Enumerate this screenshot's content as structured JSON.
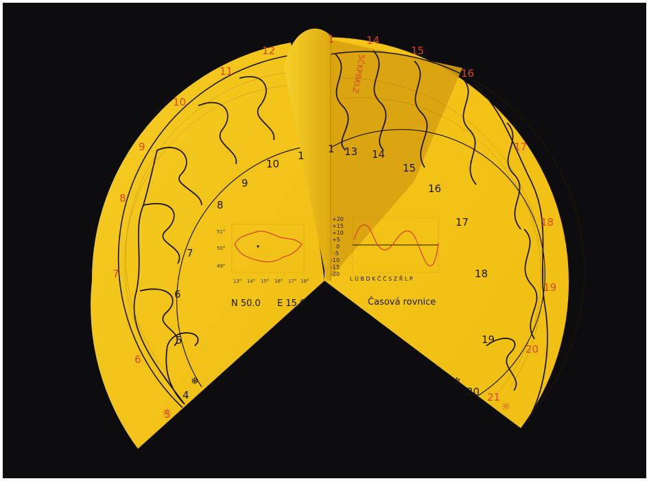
{
  "photo": {
    "background_color": "#0d0d10",
    "paper_color": "#f2c318",
    "paper_shadow_color": "#d9a50d",
    "ink_color": "#1b1407",
    "accent_red": "#d8471f"
  },
  "left_panel": {
    "outer_hours_red": [
      "5",
      "6",
      "7",
      "8",
      "9",
      "10",
      "11",
      "12"
    ],
    "inner_hours_black": [
      "4",
      "5",
      "6",
      "7",
      "8",
      "9",
      "10",
      "1"
    ],
    "map": {
      "lat_labels": [
        "51°",
        "50°",
        "49°"
      ],
      "lon_labels": [
        "13°",
        "14°",
        "15°",
        "16°",
        "17°",
        "18°"
      ]
    },
    "coordinates": {
      "lat": "N 50.0",
      "lon": "E 15.0"
    },
    "symbols": {
      "sun": "sun-icon",
      "snowflake": "snowflake-icon"
    }
  },
  "right_panel": {
    "outer_hours_red": [
      "14",
      "15",
      "16",
      "17",
      "18",
      "19",
      "20",
      "21"
    ],
    "inner_hours_black": [
      "13",
      "14",
      "15",
      "16",
      "17",
      "18",
      "19",
      "20"
    ],
    "equation_of_time": {
      "y_labels": [
        "+20",
        "+15",
        "+10",
        "+5",
        "0",
        "-5",
        "-10",
        "-15",
        "-20"
      ],
      "month_labels": "L Ú B D K Č Č S Z Ř L P",
      "caption": "Časová rovnice"
    },
    "symbols": {
      "sun": "sun-icon",
      "snowflake": "snowflake-icon"
    }
  },
  "gnomon": {
    "top_red_label": "1",
    "inner_label": "1",
    "mirrored_red_letters": "SČKPBKLZ"
  }
}
